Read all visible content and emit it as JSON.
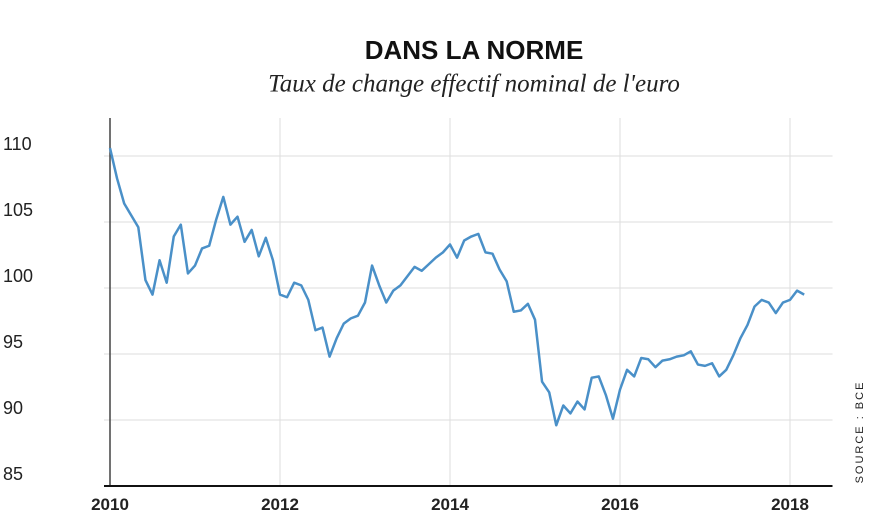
{
  "chart_data": {
    "type": "line",
    "title": "DANS LA NORME",
    "subtitle": "Taux de change effectif nominal de l'euro",
    "source": "SOURCE : BCE",
    "x": [
      2010,
      2010.083,
      2010.167,
      2010.25,
      2010.333,
      2010.417,
      2010.5,
      2010.583,
      2010.667,
      2010.75,
      2010.833,
      2010.917,
      2011,
      2011.083,
      2011.167,
      2011.25,
      2011.333,
      2011.417,
      2011.5,
      2011.583,
      2011.667,
      2011.75,
      2011.833,
      2011.917,
      2012,
      2012.083,
      2012.167,
      2012.25,
      2012.333,
      2012.417,
      2012.5,
      2012.583,
      2012.667,
      2012.75,
      2012.833,
      2012.917,
      2013,
      2013.083,
      2013.167,
      2013.25,
      2013.333,
      2013.417,
      2013.5,
      2013.583,
      2013.667,
      2013.75,
      2013.833,
      2013.917,
      2014,
      2014.083,
      2014.167,
      2014.25,
      2014.333,
      2014.417,
      2014.5,
      2014.583,
      2014.667,
      2014.75,
      2014.833,
      2014.917,
      2015,
      2015.083,
      2015.167,
      2015.25,
      2015.333,
      2015.417,
      2015.5,
      2015.583,
      2015.667,
      2015.75,
      2015.833,
      2015.917,
      2016,
      2016.083,
      2016.167,
      2016.25,
      2016.333,
      2016.417,
      2016.5,
      2016.583,
      2016.667,
      2016.75,
      2016.833,
      2016.917,
      2017,
      2017.083,
      2017.167,
      2017.25,
      2017.333,
      2017.417,
      2017.5,
      2017.583,
      2017.667,
      2017.75,
      2017.833,
      2017.917,
      2018,
      2018.083,
      2018.167
    ],
    "series": [
      {
        "name": "Taux de change effectif nominal",
        "color": "#4a90c8",
        "values": [
          110.6,
          108.3,
          106.4,
          105.5,
          104.6,
          100.6,
          99.5,
          102.1,
          100.4,
          103.9,
          104.8,
          101.1,
          101.7,
          103.0,
          103.2,
          105.2,
          106.9,
          104.8,
          105.4,
          103.5,
          104.4,
          102.4,
          103.8,
          102.1,
          99.5,
          99.3,
          100.4,
          100.2,
          99.1,
          96.8,
          97.0,
          94.8,
          96.2,
          97.3,
          97.7,
          97.9,
          98.9,
          101.7,
          100.2,
          98.9,
          99.8,
          100.2,
          100.9,
          101.6,
          101.3,
          101.8,
          102.3,
          102.7,
          103.3,
          102.3,
          103.6,
          103.9,
          104.1,
          102.7,
          102.6,
          101.4,
          100.5,
          98.2,
          98.3,
          98.8,
          97.6,
          92.9,
          92.1,
          89.6,
          91.1,
          90.5,
          91.4,
          90.8,
          93.2,
          93.3,
          91.9,
          90.1,
          92.3,
          93.8,
          93.3,
          94.7,
          94.6,
          94.0,
          94.5,
          94.6,
          94.8,
          94.9,
          95.2,
          94.2,
          94.1,
          94.3,
          93.3,
          93.8,
          94.9,
          96.2,
          97.2,
          98.6,
          99.1,
          98.9,
          98.1,
          98.9,
          99.1,
          99.8,
          99.5
        ]
      }
    ],
    "xlim": [
      2010,
      2018.5
    ],
    "xticks": [
      2010,
      2012,
      2014,
      2016,
      2018
    ],
    "ylim": [
      85,
      112.5
    ],
    "yticks": [
      85,
      90,
      95,
      100,
      105,
      110
    ],
    "grid": true
  }
}
